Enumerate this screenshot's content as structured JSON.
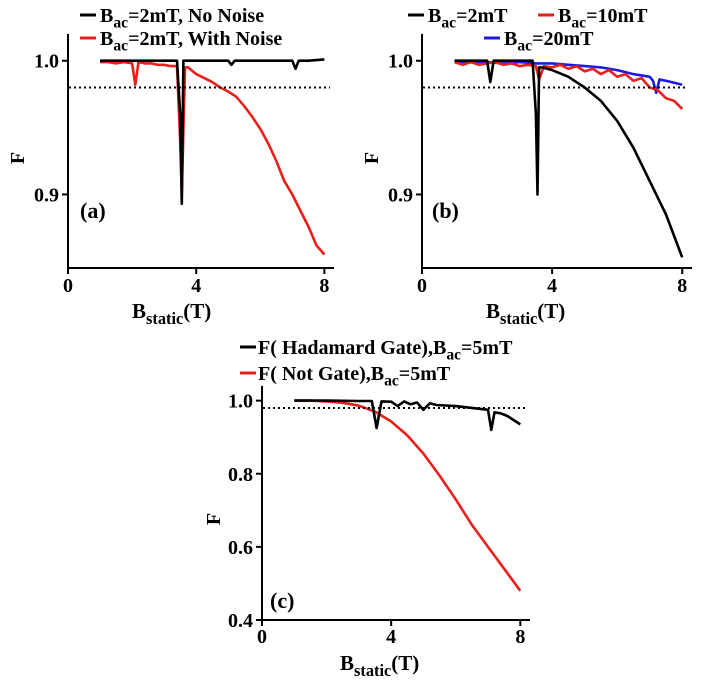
{
  "chart_data": [
    {
      "panel": "(a)",
      "type": "line",
      "xlabel_main": "B",
      "xlabel_sub": "static",
      "xlabel_tail": "(T)",
      "ylabel": "F",
      "xlim": [
        0,
        8.3
      ],
      "ylim": [
        0.845,
        1.02
      ],
      "xticks": [
        "0",
        "4",
        "8"
      ],
      "xtick_values": [
        0,
        4,
        8
      ],
      "yticks": [
        "0.9",
        "1.0"
      ],
      "ytick_values": [
        0.9,
        1.0
      ],
      "threshold": 0.98,
      "legend": [
        {
          "main": "B",
          "sub": "ac",
          "tail": "=2mT, No Noise",
          "color": "#000000"
        },
        {
          "main": "B",
          "sub": "ac",
          "tail": "=2mT, With Noise",
          "color": "#e8201c"
        }
      ],
      "series": [
        {
          "color": "#e8201c",
          "x": [
            1.0,
            1.25,
            1.5,
            1.75,
            2.0,
            2.1,
            2.2,
            2.4,
            2.6,
            2.8,
            3.0,
            3.2,
            3.4,
            3.5,
            3.55,
            3.65,
            3.75,
            3.85,
            4.0,
            4.25,
            4.5,
            4.75,
            5.0,
            5.25,
            5.5,
            5.75,
            6.0,
            6.25,
            6.5,
            6.75,
            7.0,
            7.25,
            7.5,
            7.75,
            8.0
          ],
          "y": [
            0.999,
            0.999,
            0.998,
            0.999,
            0.998,
            0.982,
            0.999,
            0.998,
            0.998,
            0.997,
            0.997,
            0.996,
            0.996,
            0.94,
            0.9,
            0.995,
            0.995,
            0.993,
            0.99,
            0.987,
            0.984,
            0.98,
            0.977,
            0.973,
            0.966,
            0.958,
            0.949,
            0.938,
            0.925,
            0.91,
            0.9,
            0.888,
            0.876,
            0.862,
            0.855
          ]
        },
        {
          "color": "#000000",
          "x": [
            1.0,
            1.5,
            2.0,
            2.5,
            3.0,
            3.4,
            3.5,
            3.55,
            3.6,
            3.7,
            4.0,
            4.5,
            5.0,
            5.1,
            5.2,
            5.5,
            6.0,
            6.5,
            7.0,
            7.1,
            7.2,
            7.5,
            8.0
          ],
          "y": [
            1.0,
            1.0,
            1.0,
            1.0,
            1.0,
            1.0,
            0.96,
            0.893,
            1.0,
            1.0,
            1.0,
            1.0,
            1.0,
            0.997,
            1.0,
            1.0,
            1.0,
            1.0,
            1.0,
            0.994,
            1.0,
            1.0,
            1.001
          ]
        }
      ]
    },
    {
      "panel": "(b)",
      "type": "line",
      "xlabel_main": "B",
      "xlabel_sub": "static",
      "xlabel_tail": "(T)",
      "ylabel": "F",
      "xlim": [
        0,
        8.3
      ],
      "ylim": [
        0.845,
        1.02
      ],
      "xticks": [
        "0",
        "4",
        "8"
      ],
      "xtick_values": [
        0,
        4,
        8
      ],
      "yticks": [
        "0.9",
        "1.0"
      ],
      "ytick_values": [
        0.9,
        1.0
      ],
      "threshold": 0.98,
      "legend": [
        {
          "main": "B",
          "sub": "ac",
          "tail": "=2mT",
          "color": "#000000"
        },
        {
          "main": "B",
          "sub": "ac",
          "tail": "=10mT",
          "color": "#e8201c"
        },
        {
          "main": "B",
          "sub": "ac",
          "tail": "=20mT",
          "color": "#1c1ce0"
        }
      ],
      "series": [
        {
          "color": "#1c1ce0",
          "x": [
            1.0,
            1.5,
            2.0,
            2.5,
            3.0,
            3.5,
            4.0,
            4.5,
            5.0,
            5.5,
            6.0,
            6.5,
            7.0,
            7.1,
            7.2,
            7.3,
            7.5,
            8.0
          ],
          "y": [
            0.999,
            0.999,
            0.999,
            0.998,
            0.999,
            0.998,
            0.998,
            0.997,
            0.996,
            0.995,
            0.993,
            0.99,
            0.988,
            0.985,
            0.976,
            0.986,
            0.985,
            0.982
          ]
        },
        {
          "color": "#e8201c",
          "x": [
            1.0,
            1.25,
            1.5,
            1.75,
            2.0,
            2.25,
            2.5,
            2.75,
            3.0,
            3.25,
            3.5,
            3.6,
            3.75,
            4.0,
            4.25,
            4.5,
            4.75,
            5.0,
            5.25,
            5.5,
            5.75,
            6.0,
            6.25,
            6.5,
            6.75,
            7.0,
            7.25,
            7.5,
            7.75,
            8.0
          ],
          "y": [
            0.999,
            0.997,
            0.999,
            0.997,
            0.998,
            0.999,
            0.997,
            0.998,
            0.996,
            0.997,
            0.996,
            0.986,
            0.996,
            0.995,
            0.997,
            0.994,
            0.996,
            0.992,
            0.994,
            0.99,
            0.993,
            0.988,
            0.99,
            0.985,
            0.987,
            0.98,
            0.978,
            0.972,
            0.97,
            0.964
          ]
        },
        {
          "color": "#000000",
          "x": [
            1.0,
            1.5,
            2.0,
            2.1,
            2.2,
            2.5,
            3.0,
            3.4,
            3.5,
            3.55,
            3.6,
            3.7,
            4.0,
            4.5,
            5.0,
            5.5,
            6.0,
            6.5,
            7.0,
            7.5,
            8.0
          ],
          "y": [
            1.0,
            1.0,
            1.0,
            0.984,
            1.0,
            1.0,
            1.0,
            1.0,
            0.96,
            0.9,
            0.995,
            0.995,
            0.993,
            0.988,
            0.98,
            0.97,
            0.955,
            0.935,
            0.91,
            0.885,
            0.853
          ]
        }
      ]
    },
    {
      "panel": "(c)",
      "type": "line",
      "xlabel_main": "B",
      "xlabel_sub": "static",
      "xlabel_tail": "(T)",
      "ylabel": "F",
      "xlim": [
        0,
        8.3
      ],
      "ylim": [
        0.4,
        1.04
      ],
      "xticks": [
        "0",
        "4",
        "8"
      ],
      "xtick_values": [
        0,
        4,
        8
      ],
      "yticks": [
        "0.4",
        "0.6",
        "0.8",
        "1.0"
      ],
      "ytick_values": [
        0.4,
        0.6,
        0.8,
        1.0
      ],
      "threshold": 0.98,
      "legend": [
        {
          "main": "F( Hadamard Gate),B",
          "sub": "ac",
          "tail": "=5mT",
          "color": "#000000"
        },
        {
          "main": "F( Not Gate),B",
          "sub": "ac",
          "tail": "=5mT",
          "color": "#e8201c"
        }
      ],
      "series": [
        {
          "color": "#e8201c",
          "x": [
            1.0,
            1.5,
            2.0,
            2.5,
            3.0,
            3.5,
            4.0,
            4.5,
            5.0,
            5.5,
            6.0,
            6.5,
            7.0,
            7.5,
            8.0
          ],
          "y": [
            1.0,
            1.0,
            0.998,
            0.994,
            0.986,
            0.97,
            0.943,
            0.905,
            0.855,
            0.795,
            0.73,
            0.66,
            0.6,
            0.54,
            0.48
          ]
        },
        {
          "color": "#000000",
          "x": [
            1.0,
            2.0,
            3.0,
            3.4,
            3.55,
            3.7,
            4.0,
            4.2,
            4.4,
            4.6,
            4.8,
            5.0,
            5.2,
            5.4,
            6.0,
            6.5,
            7.0,
            7.1,
            7.2,
            7.4,
            7.6,
            8.0
          ],
          "y": [
            1.0,
            1.0,
            0.999,
            0.999,
            0.925,
            0.998,
            0.997,
            0.985,
            0.998,
            0.99,
            0.995,
            0.975,
            0.993,
            0.988,
            0.985,
            0.98,
            0.975,
            0.92,
            0.968,
            0.965,
            0.958,
            0.935
          ]
        }
      ]
    }
  ]
}
